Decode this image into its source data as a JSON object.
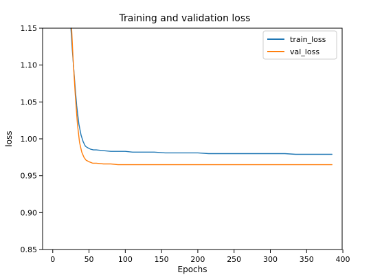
{
  "chart_data": {
    "type": "line",
    "title": "Training and validation loss",
    "xlabel": "Epochs",
    "ylabel": "loss",
    "xlim": [
      -14,
      399
    ],
    "ylim": [
      0.85,
      1.15
    ],
    "xticks": [
      0,
      50,
      100,
      150,
      200,
      250,
      300,
      350,
      400
    ],
    "xtick_labels": [
      "0",
      "50",
      "100",
      "150",
      "200",
      "250",
      "300",
      "350",
      "400"
    ],
    "yticks": [
      0.85,
      0.9,
      0.95,
      1.0,
      1.05,
      1.1,
      1.15
    ],
    "ytick_labels": [
      "0.85",
      "0.90",
      "0.95",
      "1.00",
      "1.05",
      "1.10",
      "1.15"
    ],
    "grid": false,
    "legend_position": "top-right",
    "series": [
      {
        "name": "train_loss",
        "color": "#1f77b4",
        "x": [
          25,
          27,
          30,
          33,
          36,
          39,
          42,
          45,
          48,
          52,
          56,
          60,
          70,
          80,
          90,
          100,
          110,
          125,
          140,
          155,
          170,
          185,
          200,
          215,
          230,
          245,
          260,
          275,
          290,
          305,
          320,
          335,
          350,
          365,
          380,
          385
        ],
        "y": [
          1.15,
          1.12,
          1.08,
          1.045,
          1.02,
          1.005,
          0.996,
          0.99,
          0.988,
          0.986,
          0.985,
          0.985,
          0.984,
          0.983,
          0.983,
          0.983,
          0.982,
          0.982,
          0.982,
          0.981,
          0.981,
          0.981,
          0.981,
          0.98,
          0.98,
          0.98,
          0.98,
          0.98,
          0.98,
          0.98,
          0.98,
          0.979,
          0.979,
          0.979,
          0.979,
          0.979
        ]
      },
      {
        "name": "val_loss",
        "color": "#ff7f0e",
        "x": [
          26,
          28,
          31,
          34,
          37,
          40,
          43,
          46,
          50,
          55,
          60,
          70,
          80,
          90,
          100,
          110,
          125,
          140,
          155,
          170,
          185,
          200,
          215,
          230,
          245,
          260,
          275,
          290,
          305,
          320,
          335,
          350,
          365,
          380,
          385
        ],
        "y": [
          1.15,
          1.11,
          1.06,
          1.02,
          0.995,
          0.982,
          0.975,
          0.971,
          0.969,
          0.967,
          0.967,
          0.966,
          0.966,
          0.965,
          0.965,
          0.965,
          0.965,
          0.965,
          0.965,
          0.965,
          0.965,
          0.965,
          0.965,
          0.965,
          0.965,
          0.965,
          0.965,
          0.965,
          0.965,
          0.965,
          0.965,
          0.965,
          0.965,
          0.965,
          0.965
        ]
      }
    ]
  }
}
